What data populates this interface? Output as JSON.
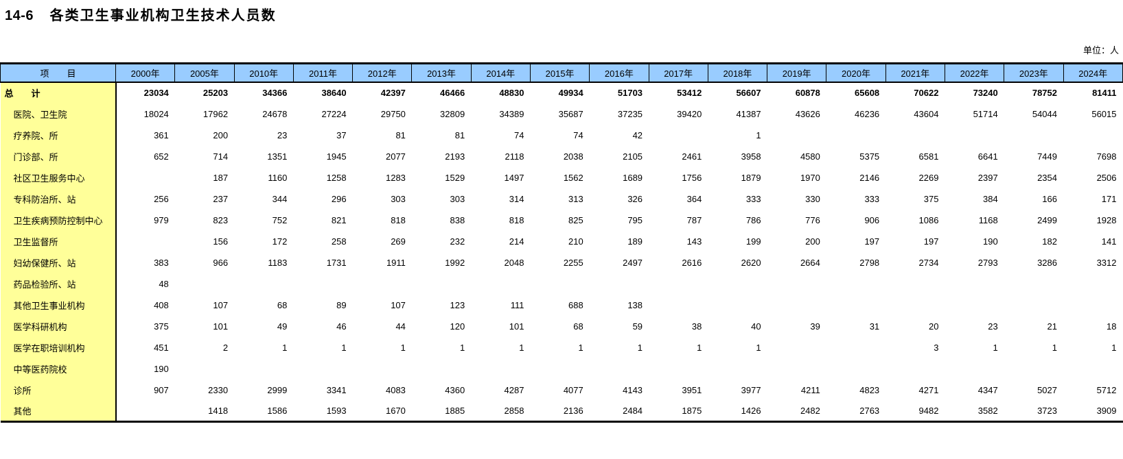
{
  "page": {
    "title_number": "14-6",
    "title_text": "各类卫生事业机构卫生技术人员数",
    "unit_label": "单位：人"
  },
  "colors": {
    "header_bg": "#99CCFF",
    "label_bg": "#FFFF99",
    "border": "#000000"
  },
  "table": {
    "item_header": "项　　目",
    "year_columns": [
      "2000年",
      "2005年",
      "2010年",
      "2011年",
      "2012年",
      "2013年",
      "2014年",
      "2015年",
      "2016年",
      "2017年",
      "2018年",
      "2019年",
      "2020年",
      "2021年",
      "2022年",
      "2023年",
      "2024年"
    ],
    "rows": [
      {
        "label": "总　　计",
        "indent": false,
        "bold": true,
        "values": [
          23034,
          25203,
          34366,
          38640,
          42397,
          46466,
          48830,
          49934,
          51703,
          53412,
          56607,
          60878,
          65608,
          70622,
          73240,
          78752,
          81411
        ]
      },
      {
        "label": "医院、卫生院",
        "indent": true,
        "bold": false,
        "values": [
          18024,
          17962,
          24678,
          27224,
          29750,
          32809,
          34389,
          35687,
          37235,
          39420,
          41387,
          43626,
          46236,
          43604,
          51714,
          54044,
          56015
        ]
      },
      {
        "label": "疗养院、所",
        "indent": true,
        "bold": false,
        "values": [
          361,
          200,
          23,
          37,
          81,
          81,
          74,
          74,
          42,
          "",
          1,
          "",
          "",
          "",
          "",
          "",
          ""
        ]
      },
      {
        "label": "门诊部、所",
        "indent": true,
        "bold": false,
        "values": [
          652,
          714,
          1351,
          1945,
          2077,
          2193,
          2118,
          2038,
          2105,
          2461,
          3958,
          4580,
          5375,
          6581,
          6641,
          7449,
          7698
        ]
      },
      {
        "label": "社区卫生服务中心",
        "indent": true,
        "bold": false,
        "values": [
          "",
          187,
          1160,
          1258,
          1283,
          1529,
          1497,
          1562,
          1689,
          1756,
          1879,
          1970,
          2146,
          2269,
          2397,
          2354,
          2506
        ]
      },
      {
        "label": "专科防治所、站",
        "indent": true,
        "bold": false,
        "values": [
          256,
          237,
          344,
          296,
          303,
          303,
          314,
          313,
          326,
          364,
          333,
          330,
          333,
          375,
          384,
          166,
          171
        ]
      },
      {
        "label": "卫生疾病预防控制中心",
        "indent": true,
        "bold": false,
        "values": [
          979,
          823,
          752,
          821,
          818,
          838,
          818,
          825,
          795,
          787,
          786,
          776,
          906,
          1086,
          1168,
          2499,
          1928
        ]
      },
      {
        "label": "卫生监督所",
        "indent": true,
        "bold": false,
        "values": [
          "",
          156,
          172,
          258,
          269,
          232,
          214,
          210,
          189,
          143,
          199,
          200,
          197,
          197,
          190,
          182,
          141
        ]
      },
      {
        "label": "妇幼保健所、站",
        "indent": true,
        "bold": false,
        "values": [
          383,
          966,
          1183,
          1731,
          1911,
          1992,
          2048,
          2255,
          2497,
          2616,
          2620,
          2664,
          2798,
          2734,
          2793,
          3286,
          3312
        ]
      },
      {
        "label": "药品检验所、站",
        "indent": true,
        "bold": false,
        "values": [
          48,
          "",
          "",
          "",
          "",
          "",
          "",
          "",
          "",
          "",
          "",
          "",
          "",
          "",
          "",
          "",
          ""
        ]
      },
      {
        "label": "其他卫生事业机构",
        "indent": true,
        "bold": false,
        "values": [
          408,
          107,
          68,
          89,
          107,
          123,
          111,
          688,
          138,
          "",
          "",
          "",
          "",
          "",
          "",
          "",
          ""
        ]
      },
      {
        "label": "医学科研机构",
        "indent": true,
        "bold": false,
        "values": [
          375,
          101,
          49,
          46,
          44,
          120,
          101,
          68,
          59,
          38,
          40,
          39,
          31,
          20,
          23,
          21,
          18
        ]
      },
      {
        "label": "医学在职培训机构",
        "indent": true,
        "bold": false,
        "values": [
          451,
          2,
          1,
          1,
          1,
          1,
          1,
          1,
          1,
          1,
          1,
          "",
          "",
          3,
          1,
          1,
          1
        ]
      },
      {
        "label": "中等医药院校",
        "indent": true,
        "bold": false,
        "values": [
          190,
          "",
          "",
          "",
          "",
          "",
          "",
          "",
          "",
          "",
          "",
          "",
          "",
          "",
          "",
          "",
          ""
        ]
      },
      {
        "label": "诊所",
        "indent": true,
        "bold": false,
        "values": [
          907,
          2330,
          2999,
          3341,
          4083,
          4360,
          4287,
          4077,
          4143,
          3951,
          3977,
          4211,
          4823,
          4271,
          4347,
          5027,
          5712
        ]
      },
      {
        "label": "其他",
        "indent": true,
        "bold": false,
        "values": [
          "",
          1418,
          1586,
          1593,
          1670,
          1885,
          2858,
          2136,
          2484,
          1875,
          1426,
          2482,
          2763,
          9482,
          3582,
          3723,
          3909
        ]
      }
    ]
  }
}
